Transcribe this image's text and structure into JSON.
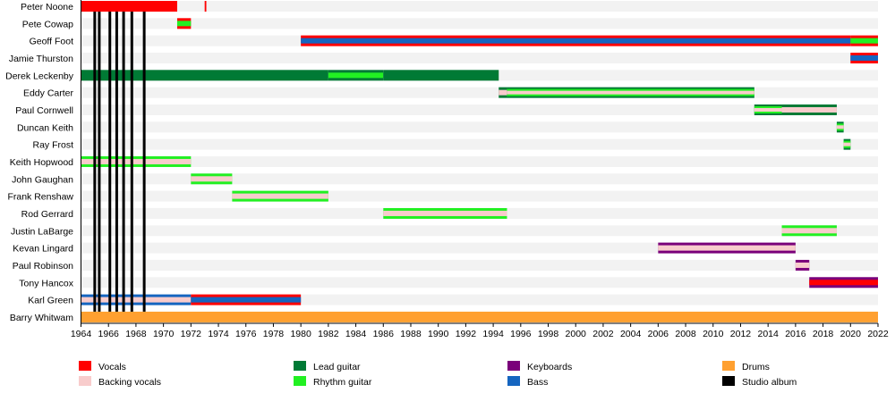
{
  "chart_data": {
    "type": "timeline",
    "title": "",
    "xlim": [
      1964,
      2022
    ],
    "x_ticks": [
      1964,
      1966,
      1968,
      1970,
      1972,
      1974,
      1976,
      1978,
      1980,
      1982,
      1984,
      1986,
      1988,
      1990,
      1992,
      1994,
      1996,
      1998,
      2000,
      2002,
      2004,
      2006,
      2008,
      2010,
      2012,
      2014,
      2016,
      2018,
      2020,
      2022
    ],
    "roles": {
      "vocals": {
        "label": "Vocals",
        "color": "#ff0000"
      },
      "backing": {
        "label": "Backing vocals",
        "color": "#f8cccc"
      },
      "lead": {
        "label": "Lead guitar",
        "color": "#007a35"
      },
      "rhythm": {
        "label": "Rhythm guitar",
        "color": "#22f022"
      },
      "keyboards": {
        "label": "Keyboards",
        "color": "#7a007a"
      },
      "bass": {
        "label": "Bass",
        "color": "#1565c0"
      },
      "drums": {
        "label": "Drums",
        "color": "#ffa030"
      },
      "album": {
        "label": "Studio album",
        "color": "#000000"
      }
    },
    "legend_order": [
      "vocals",
      "backing",
      "lead",
      "rhythm",
      "keyboards",
      "bass",
      "drums",
      "album"
    ],
    "members": [
      {
        "name": "Peter Noone",
        "segments": [
          {
            "from": 1964,
            "to": 1971,
            "roles": [
              "vocals"
            ]
          },
          {
            "from": 1973,
            "to": 1973.12,
            "roles": [
              "vocals"
            ]
          }
        ]
      },
      {
        "name": "Pete Cowap",
        "segments": [
          {
            "from": 1971,
            "to": 1972,
            "roles": [
              "vocals",
              "rhythm"
            ]
          }
        ]
      },
      {
        "name": "Geoff Foot",
        "segments": [
          {
            "from": 1980,
            "to": 2020,
            "roles": [
              "vocals",
              "bass"
            ]
          },
          {
            "from": 2020,
            "to": 2022,
            "roles": [
              "vocals",
              "rhythm"
            ]
          }
        ]
      },
      {
        "name": "Jamie Thurston",
        "segments": [
          {
            "from": 2020,
            "to": 2022,
            "roles": [
              "vocals",
              "bass"
            ]
          }
        ]
      },
      {
        "name": "Derek Leckenby",
        "segments": [
          {
            "from": 1964,
            "to": 1982,
            "roles": [
              "lead"
            ]
          },
          {
            "from": 1982,
            "to": 1986,
            "roles": [
              "lead",
              "rhythm"
            ]
          },
          {
            "from": 1986,
            "to": 1994.4,
            "roles": [
              "lead"
            ]
          }
        ]
      },
      {
        "name": "Eddy Carter",
        "segments": [
          {
            "from": 1994.4,
            "to": 1995,
            "roles": [
              "lead",
              "backing"
            ]
          },
          {
            "from": 1995,
            "to": 2013,
            "roles": [
              "lead",
              "rhythm",
              "backing"
            ]
          }
        ]
      },
      {
        "name": "Paul Cornwell",
        "segments": [
          {
            "from": 2013,
            "to": 2015,
            "roles": [
              "lead",
              "rhythm",
              "backing"
            ]
          },
          {
            "from": 2015,
            "to": 2019,
            "roles": [
              "lead",
              "backing"
            ]
          }
        ]
      },
      {
        "name": "Duncan Keith",
        "segments": [
          {
            "from": 2019,
            "to": 2019.5,
            "roles": [
              "lead",
              "rhythm",
              "backing"
            ]
          }
        ]
      },
      {
        "name": "Ray Frost",
        "segments": [
          {
            "from": 2019.5,
            "to": 2020,
            "roles": [
              "lead",
              "rhythm",
              "backing"
            ]
          }
        ]
      },
      {
        "name": "Keith Hopwood",
        "segments": [
          {
            "from": 1964,
            "to": 1972,
            "roles": [
              "rhythm",
              "backing"
            ]
          }
        ]
      },
      {
        "name": "John Gaughan",
        "segments": [
          {
            "from": 1972,
            "to": 1975,
            "roles": [
              "rhythm",
              "backing"
            ]
          }
        ]
      },
      {
        "name": "Frank Renshaw",
        "segments": [
          {
            "from": 1975,
            "to": 1982,
            "roles": [
              "rhythm",
              "backing"
            ]
          }
        ]
      },
      {
        "name": "Rod Gerrard",
        "segments": [
          {
            "from": 1986,
            "to": 1995,
            "roles": [
              "rhythm",
              "backing"
            ]
          }
        ]
      },
      {
        "name": "Justin LaBarge",
        "segments": [
          {
            "from": 2015,
            "to": 2019,
            "roles": [
              "rhythm",
              "backing"
            ]
          }
        ]
      },
      {
        "name": "Kevan Lingard",
        "segments": [
          {
            "from": 2006,
            "to": 2016,
            "roles": [
              "keyboards",
              "backing"
            ]
          }
        ]
      },
      {
        "name": "Paul Robinson",
        "segments": [
          {
            "from": 2016,
            "to": 2017,
            "roles": [
              "keyboards",
              "backing"
            ]
          }
        ]
      },
      {
        "name": "Tony Hancox",
        "segments": [
          {
            "from": 2017,
            "to": 2022,
            "roles": [
              "keyboards",
              "vocals"
            ]
          }
        ]
      },
      {
        "name": "Karl Green",
        "segments": [
          {
            "from": 1964,
            "to": 1972,
            "roles": [
              "bass",
              "backing"
            ]
          },
          {
            "from": 1972,
            "to": 1980,
            "roles": [
              "vocals",
              "bass"
            ]
          }
        ]
      },
      {
        "name": "Barry Whitwam",
        "segments": [
          {
            "from": 1964,
            "to": 2022,
            "roles": [
              "drums"
            ]
          }
        ]
      }
    ],
    "albums": [
      1965.0,
      1965.33,
      1966.1,
      1966.6,
      1967.1,
      1967.7,
      1968.6
    ]
  }
}
